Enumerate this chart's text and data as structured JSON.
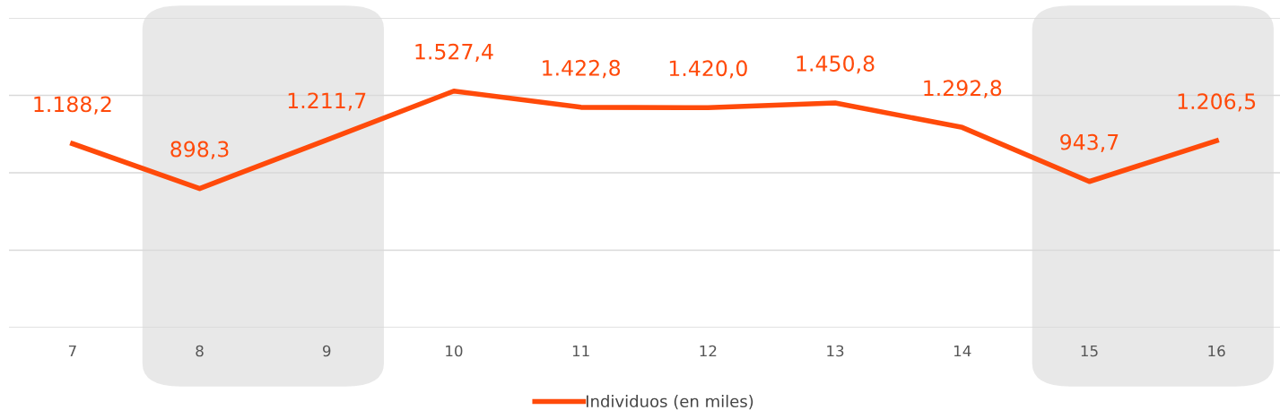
{
  "chart_data": {
    "type": "line",
    "categories": [
      "7",
      "8",
      "9",
      "10",
      "11",
      "12",
      "13",
      "14",
      "15",
      "16"
    ],
    "series": [
      {
        "name": "Individuos (en miles)",
        "color": "#ff4a0a",
        "values": [
          1188.2,
          898.3,
          1211.7,
          1527.4,
          1422.8,
          1420.0,
          1450.8,
          1292.8,
          943.7,
          1206.5
        ],
        "value_labels": [
          "1.188,2",
          "898,3",
          "1.211,7",
          "1.527,4",
          "1.422,8",
          "1.420,0",
          "1.450,8",
          "1.292,8",
          "943,7",
          "1.206,5"
        ]
      }
    ],
    "ylim": [
      0,
      2000
    ],
    "yticks": [
      {
        "value": 0,
        "label": null
      },
      {
        "value": 500,
        "label": null
      },
      {
        "value": 1000,
        "label": null
      },
      {
        "value": 1500,
        "label": null
      },
      {
        "value": 2000,
        "label": null
      }
    ],
    "grid": "y",
    "legend": "bottom",
    "marker": "none",
    "line_style": "solid",
    "bands": [
      {
        "axis": "x",
        "from": "8",
        "to": "9",
        "color": "#e8e8e8"
      },
      {
        "axis": "x",
        "from": "15",
        "to": "16",
        "color": "#e8e8e8"
      }
    ]
  }
}
